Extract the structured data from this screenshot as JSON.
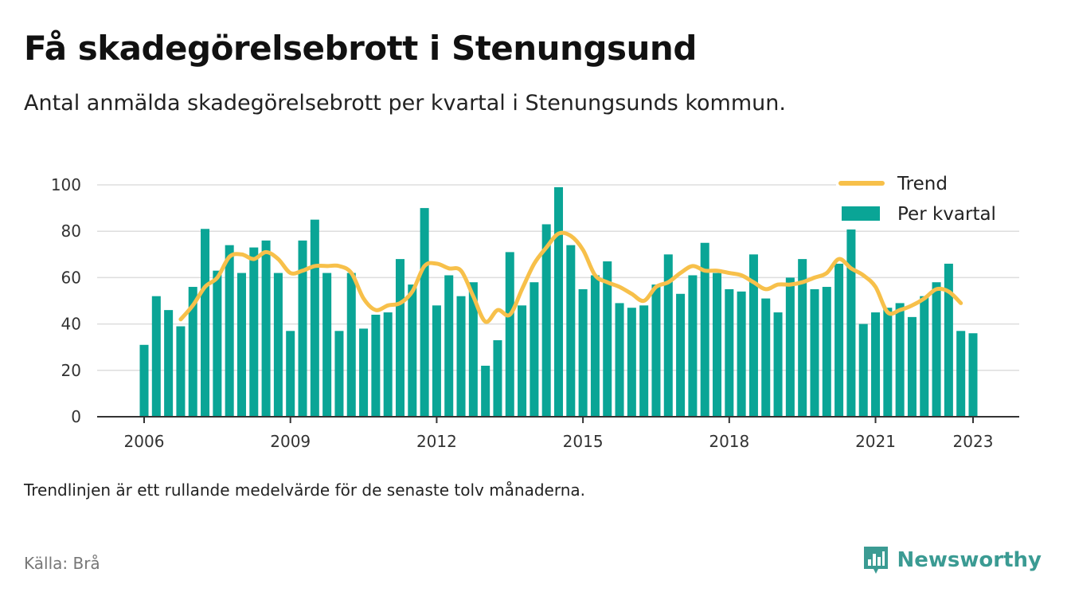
{
  "header": {
    "title": "Få skadegörelsebrott i Stenungsund",
    "subtitle": "Antal anmälda skadegörelsebrott per kvartal i Stenungsunds kommun."
  },
  "footer": {
    "note": "Trendlinjen är ett rullande medelvärde för de senaste tolv månaderna.",
    "source": "Källa: Brå",
    "brand": "Newsworthy"
  },
  "colors": {
    "bar": "#0aa596",
    "trend": "#f7c04a",
    "grid": "#dddddd",
    "axis": "#333333"
  },
  "chart_data": {
    "type": "bar",
    "title": "Få skadegörelsebrott i Stenungsund",
    "subtitle": "Antal anmälda skadegörelsebrott per kvartal i Stenungsunds kommun.",
    "xlabel": "",
    "ylabel": "",
    "ylim": [
      0,
      100
    ],
    "yticks": [
      0,
      20,
      40,
      60,
      80,
      100
    ],
    "xlim": [
      2006,
      2023.25
    ],
    "xticks": [
      "2006",
      "2009",
      "2012",
      "2015",
      "2018",
      "2021",
      "2023"
    ],
    "grid": true,
    "legend_position": "top-right",
    "legend": [
      "Trend",
      "Per kvartal"
    ],
    "categories": [
      "2006 Q1",
      "2006 Q2",
      "2006 Q3",
      "2006 Q4",
      "2007 Q1",
      "2007 Q2",
      "2007 Q3",
      "2007 Q4",
      "2008 Q1",
      "2008 Q2",
      "2008 Q3",
      "2008 Q4",
      "2009 Q1",
      "2009 Q2",
      "2009 Q3",
      "2009 Q4",
      "2010 Q1",
      "2010 Q2",
      "2010 Q3",
      "2010 Q4",
      "2011 Q1",
      "2011 Q2",
      "2011 Q3",
      "2011 Q4",
      "2012 Q1",
      "2012 Q2",
      "2012 Q3",
      "2012 Q4",
      "2013 Q1",
      "2013 Q2",
      "2013 Q3",
      "2013 Q4",
      "2014 Q1",
      "2014 Q2",
      "2014 Q3",
      "2014 Q4",
      "2015 Q1",
      "2015 Q2",
      "2015 Q3",
      "2015 Q4",
      "2016 Q1",
      "2016 Q2",
      "2016 Q3",
      "2016 Q4",
      "2017 Q1",
      "2017 Q2",
      "2017 Q3",
      "2017 Q4",
      "2018 Q1",
      "2018 Q2",
      "2018 Q3",
      "2018 Q4",
      "2019 Q1",
      "2019 Q2",
      "2019 Q3",
      "2019 Q4",
      "2020 Q1",
      "2020 Q2",
      "2020 Q3",
      "2020 Q4",
      "2021 Q1",
      "2021 Q2",
      "2021 Q3",
      "2021 Q4",
      "2022 Q1",
      "2022 Q2",
      "2022 Q3",
      "2022 Q4",
      "2023 Q1"
    ],
    "series": [
      {
        "name": "Per kvartal",
        "type": "bar",
        "values": [
          31,
          52,
          46,
          39,
          56,
          81,
          63,
          74,
          62,
          73,
          76,
          62,
          37,
          76,
          85,
          62,
          37,
          62,
          38,
          44,
          45,
          68,
          57,
          90,
          48,
          61,
          52,
          58,
          22,
          33,
          71,
          48,
          58,
          83,
          99,
          74,
          55,
          61,
          67,
          49,
          47,
          48,
          57,
          70,
          53,
          61,
          75,
          62,
          55,
          54,
          70,
          51,
          45,
          60,
          68,
          55,
          56,
          66,
          85,
          40,
          45,
          47,
          49,
          43,
          52,
          58,
          66,
          37,
          36
        ]
      },
      {
        "name": "Trend",
        "type": "line",
        "values": [
          null,
          null,
          null,
          42,
          48,
          56,
          60,
          69,
          70,
          68,
          71,
          68,
          62,
          63,
          65,
          65,
          65,
          62,
          51,
          46,
          48,
          49,
          54,
          65,
          66,
          64,
          63,
          52,
          41,
          46,
          44,
          55,
          66,
          73,
          79,
          78,
          72,
          61,
          58,
          56,
          53,
          50,
          56,
          58,
          62,
          65,
          63,
          63,
          62,
          61,
          58,
          55,
          57,
          57,
          58,
          60,
          62,
          68,
          64,
          61,
          56,
          45,
          46,
          48,
          51,
          55,
          54,
          49,
          null
        ]
      }
    ]
  }
}
